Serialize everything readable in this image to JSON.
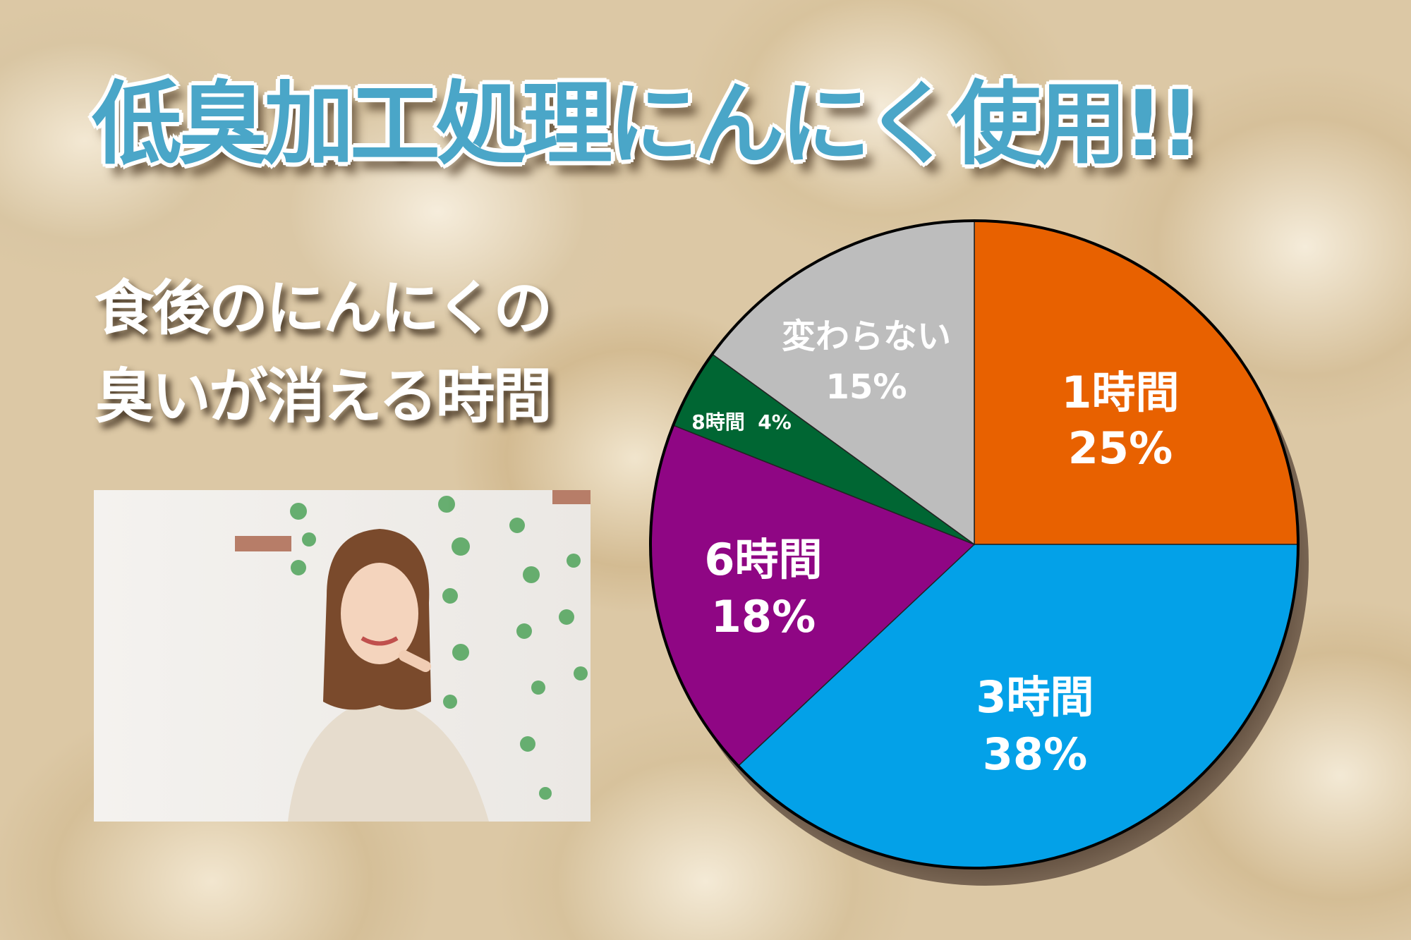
{
  "title": "低臭加工処理にんにく使用!!",
  "subtitle_lines": [
    "食後のにんにくの",
    "臭いが消える時間"
  ],
  "photo": {
    "description_icon": "woman-smiling-photo"
  },
  "chart_data": {
    "type": "pie",
    "start": "12 o'clock",
    "direction": "clockwise",
    "slices": [
      {
        "label": "1時間",
        "value": 25,
        "value_label": "25%",
        "color": "#e86100"
      },
      {
        "label": "3時間",
        "value": 38,
        "value_label": "38%",
        "color": "#03a1e8"
      },
      {
        "label": "6時間",
        "value": 18,
        "value_label": "18%",
        "color": "#8f0684"
      },
      {
        "label": "8時間",
        "value": 4,
        "value_label": "4%",
        "color": "#006633"
      },
      {
        "label": "変わらない",
        "value": 15,
        "value_label": "15%",
        "color": "#bdbdbd"
      }
    ]
  }
}
